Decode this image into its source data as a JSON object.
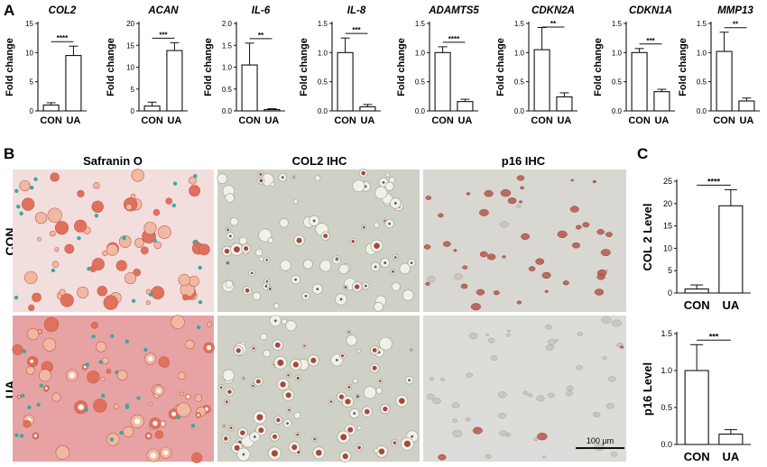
{
  "panel_labels": {
    "a": "A",
    "b": "B",
    "c": "C"
  },
  "histology": {
    "columns": [
      "Safranin O",
      "COL2 IHC",
      "p16 IHC"
    ],
    "rows": [
      "CON",
      "UA"
    ],
    "scale_bar": "100 μm",
    "colors": {
      "safranin_con_bg": "#f3dede",
      "safranin_ua_bg": "#e7a3a3",
      "col2_bg": "#cfd1c6",
      "p16_con_bg": "#d8d7d2",
      "p16_ua_bg": "#dcdcd8"
    }
  },
  "chart_data": [
    {
      "type": "bar",
      "title": "COL2",
      "ylabel": "Fold change",
      "ylim": [
        0,
        15
      ],
      "yticks": [
        0,
        5,
        10,
        15
      ],
      "categories": [
        "CON",
        "UA"
      ],
      "values": [
        1.0,
        9.5
      ],
      "errors": [
        0.4,
        1.6
      ],
      "significance": "****"
    },
    {
      "type": "bar",
      "title": "ACAN",
      "ylabel": "Fold change",
      "ylim": [
        0,
        20
      ],
      "yticks": [
        0,
        5,
        10,
        15,
        20
      ],
      "categories": [
        "CON",
        "UA"
      ],
      "values": [
        1.1,
        13.8
      ],
      "errors": [
        0.9,
        1.8
      ],
      "significance": "***"
    },
    {
      "type": "bar",
      "title": "IL-6",
      "ylabel": "Fold change",
      "ylim": [
        0,
        2.0
      ],
      "yticks": [
        0.0,
        0.5,
        1.0,
        1.5,
        2.0
      ],
      "categories": [
        "CON",
        "UA"
      ],
      "values": [
        1.05,
        0.03
      ],
      "errors": [
        0.5,
        0.02
      ],
      "significance": "**"
    },
    {
      "type": "bar",
      "title": "IL-8",
      "ylabel": "Fold change",
      "ylim": [
        0,
        1.5
      ],
      "yticks": [
        0.0,
        0.5,
        1.0,
        1.5
      ],
      "categories": [
        "CON",
        "UA"
      ],
      "values": [
        1.0,
        0.07
      ],
      "errors": [
        0.25,
        0.04
      ],
      "significance": "***"
    },
    {
      "type": "bar",
      "title": "ADAMTS5",
      "ylabel": "Fold change",
      "ylim": [
        0,
        1.5
      ],
      "yticks": [
        0.0,
        0.5,
        1.0,
        1.5
      ],
      "categories": [
        "CON",
        "UA"
      ],
      "values": [
        1.0,
        0.16
      ],
      "errors": [
        0.1,
        0.04
      ],
      "significance": "****"
    },
    {
      "type": "bar",
      "title": "CDKN2A",
      "ylabel": "Fold change",
      "ylim": [
        0,
        1.5
      ],
      "yticks": [
        0.0,
        0.5,
        1.0,
        1.5
      ],
      "categories": [
        "CON",
        "UA"
      ],
      "values": [
        1.05,
        0.24
      ],
      "errors": [
        0.38,
        0.07
      ],
      "significance": "**"
    },
    {
      "type": "bar",
      "title": "CDKN1A",
      "ylabel": "Fold change",
      "ylim": [
        0,
        1.5
      ],
      "yticks": [
        0.0,
        0.5,
        1.0,
        1.5
      ],
      "categories": [
        "CON",
        "UA"
      ],
      "values": [
        1.0,
        0.33
      ],
      "errors": [
        0.07,
        0.04
      ],
      "significance": "***"
    },
    {
      "type": "bar",
      "title": "MMP13",
      "ylabel": "Fold change",
      "ylim": [
        0,
        1.5
      ],
      "yticks": [
        0.0,
        0.5,
        1.0,
        1.5
      ],
      "categories": [
        "CON",
        "UA"
      ],
      "values": [
        1.02,
        0.17
      ],
      "errors": [
        0.33,
        0.05
      ],
      "significance": "**"
    },
    {
      "type": "bar",
      "title": "",
      "ylabel": "COL 2 Level",
      "ylim": [
        0,
        25
      ],
      "yticks": [
        0,
        5,
        10,
        15,
        20,
        25
      ],
      "categories": [
        "CON",
        "UA"
      ],
      "values": [
        0.9,
        19.5
      ],
      "errors": [
        0.9,
        3.6
      ],
      "significance": "****"
    },
    {
      "type": "bar",
      "title": "",
      "ylabel": "p16 Level",
      "ylim": [
        0,
        1.5
      ],
      "yticks": [
        0.0,
        0.5,
        1.0,
        1.5
      ],
      "categories": [
        "CON",
        "UA"
      ],
      "values": [
        1.0,
        0.14
      ],
      "errors": [
        0.35,
        0.06
      ],
      "significance": "***"
    }
  ]
}
